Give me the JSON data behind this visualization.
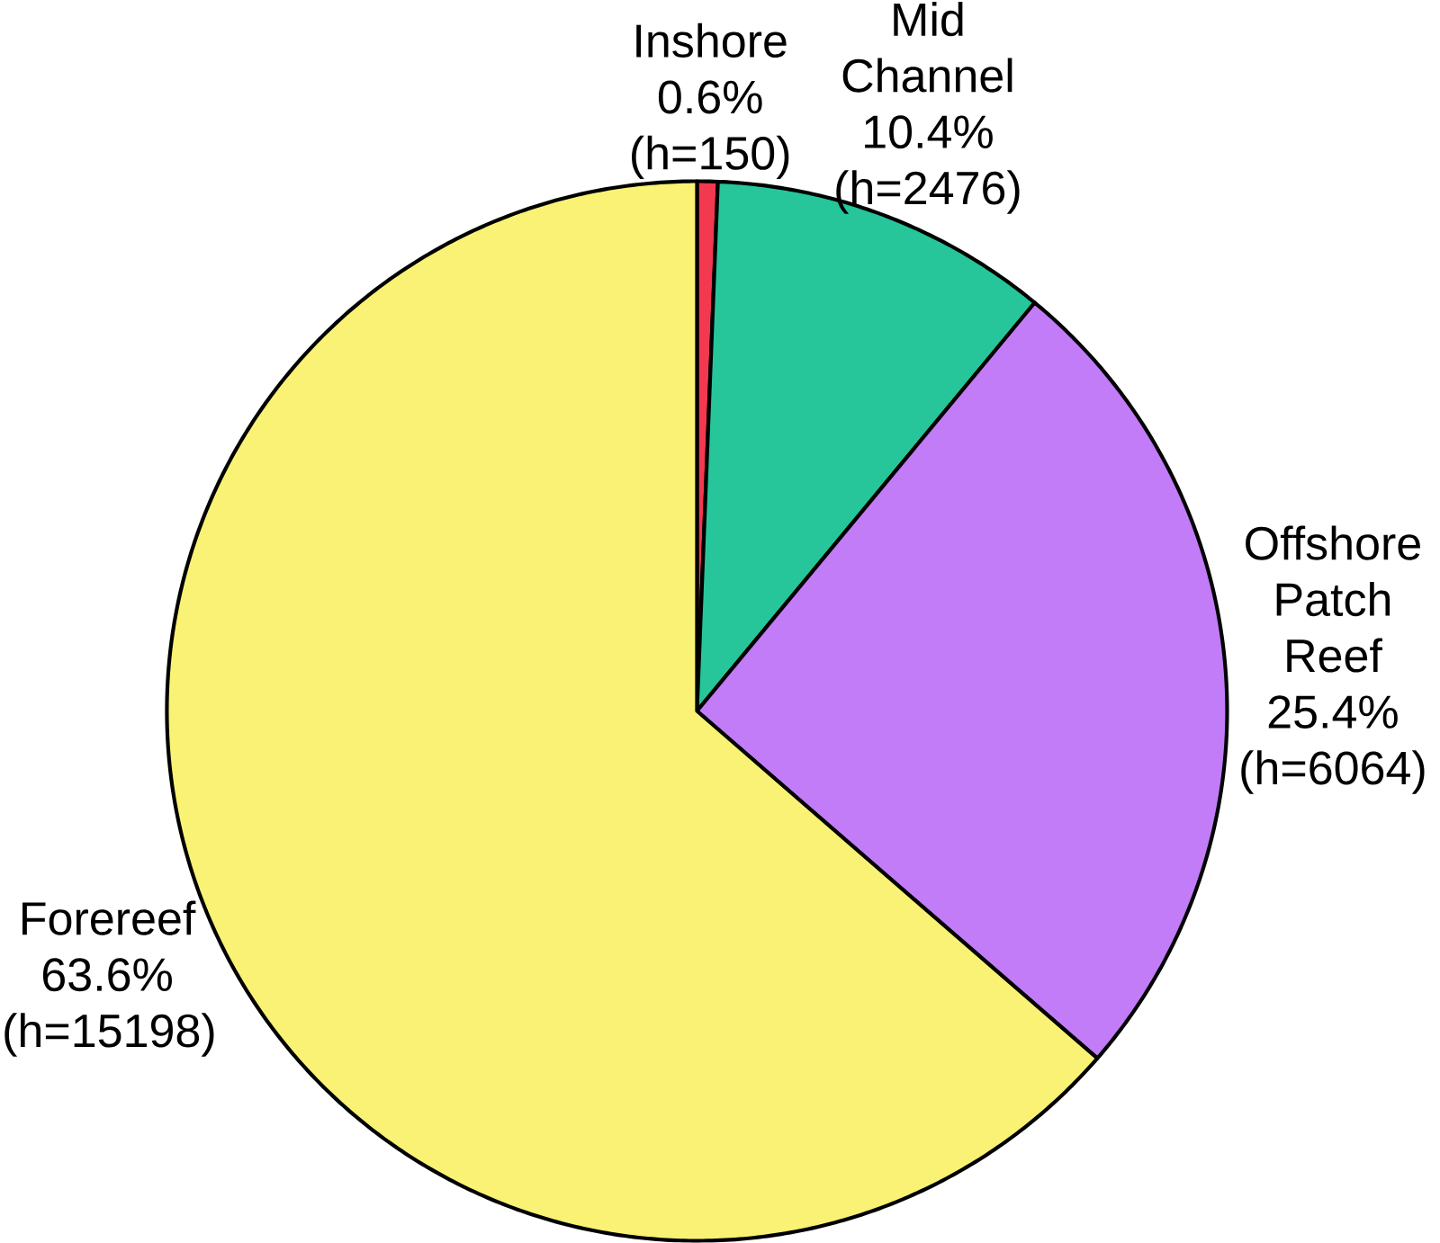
{
  "chart_data": {
    "type": "pie",
    "categories": [
      "Inshore",
      "Mid Channel",
      "Offshore Patch Reef",
      "Forereef"
    ],
    "values": [
      150,
      2476,
      6064,
      15198
    ],
    "value_labels": [
      "0.6% (h=150)",
      "10.4% (h=2476)",
      "25.4% (h=6064)",
      "63.6% (h=15198)"
    ],
    "colors": [
      "#f2394f",
      "#26c69a",
      "#c27cf8",
      "#f9f274"
    ],
    "legend": false
  }
}
